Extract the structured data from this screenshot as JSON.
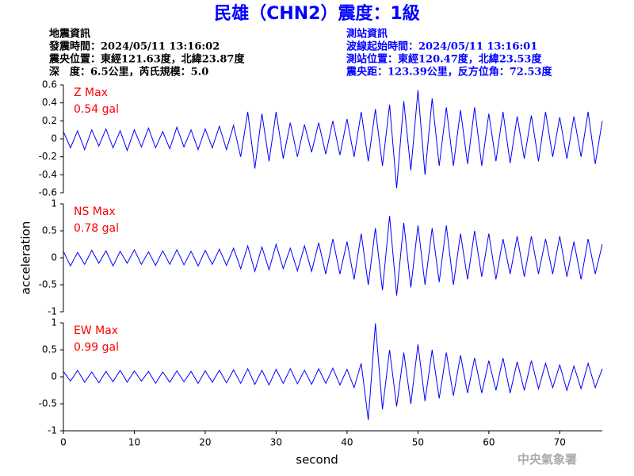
{
  "title": "民雄（CHN2）震度：1級",
  "header": {
    "left_lines": [
      "地震資訊",
      "發震時間：2024/05/11 13:16:02",
      "震央位置：東經121.63度，北緯23.87度",
      "深　度：6.5公里，芮氏規模：5.0"
    ],
    "right_lines": [
      "測站資訊",
      "波線起始時間：2024/05/11 13:16:01",
      "測站位置：東經120.47度，北緯23.53度",
      "震央距：123.39公里，反方位角：72.53度"
    ]
  },
  "watermark": "中央氣象署",
  "chart_data": [
    {
      "type": "line",
      "label": "Z Max",
      "max_label": "0.54 gal",
      "color": "#0000ff",
      "label_color": "#ff0000",
      "xlim": [
        0,
        76
      ],
      "ylim": [
        -0.6,
        0.6
      ],
      "yticks": [
        0.6,
        0.4,
        0.2,
        0,
        -0.2,
        -0.4,
        -0.6
      ],
      "x": [
        0,
        1,
        2,
        3,
        4,
        5,
        6,
        7,
        8,
        9,
        10,
        11,
        12,
        13,
        14,
        15,
        16,
        17,
        18,
        19,
        20,
        21,
        22,
        23,
        24,
        25,
        26,
        27,
        28,
        29,
        30,
        31,
        32,
        33,
        34,
        35,
        36,
        37,
        38,
        39,
        40,
        41,
        42,
        43,
        44,
        45,
        46,
        47,
        48,
        49,
        50,
        51,
        52,
        53,
        54,
        55,
        56,
        57,
        58,
        59,
        60,
        61,
        62,
        63,
        64,
        65,
        66,
        67,
        68,
        69,
        70,
        71,
        72,
        73,
        74,
        75,
        76
      ],
      "values": [
        0.08,
        -0.1,
        0.09,
        -0.12,
        0.1,
        -0.08,
        0.11,
        -0.1,
        0.09,
        -0.13,
        0.1,
        -0.09,
        0.12,
        -0.1,
        0.08,
        -0.11,
        0.13,
        -0.09,
        0.1,
        -0.12,
        0.11,
        -0.1,
        0.14,
        -0.12,
        0.15,
        -0.2,
        0.3,
        -0.33,
        0.28,
        -0.25,
        0.3,
        -0.22,
        0.18,
        -0.2,
        0.16,
        -0.15,
        0.18,
        -0.17,
        0.2,
        -0.18,
        0.22,
        -0.2,
        0.3,
        -0.25,
        0.33,
        -0.3,
        0.38,
        -0.55,
        0.42,
        -0.35,
        0.54,
        -0.4,
        0.45,
        -0.3,
        0.35,
        -0.3,
        0.32,
        -0.28,
        0.35,
        -0.3,
        0.28,
        -0.25,
        0.3,
        -0.27,
        0.25,
        -0.22,
        0.26,
        -0.25,
        0.3,
        -0.2,
        0.24,
        -0.22,
        0.25,
        -0.2,
        0.3,
        -0.28,
        0.2
      ]
    },
    {
      "type": "line",
      "label": "NS Max",
      "max_label": "0.78 gal",
      "color": "#0000ff",
      "label_color": "#ff0000",
      "ylabel": "acceleration",
      "xlim": [
        0,
        76
      ],
      "ylim": [
        -1,
        1
      ],
      "yticks": [
        1,
        0.5,
        0,
        -0.5,
        -1
      ],
      "x": [
        0,
        1,
        2,
        3,
        4,
        5,
        6,
        7,
        8,
        9,
        10,
        11,
        12,
        13,
        14,
        15,
        16,
        17,
        18,
        19,
        20,
        21,
        22,
        23,
        24,
        25,
        26,
        27,
        28,
        29,
        30,
        31,
        32,
        33,
        34,
        35,
        36,
        37,
        38,
        39,
        40,
        41,
        42,
        43,
        44,
        45,
        46,
        47,
        48,
        49,
        50,
        51,
        52,
        53,
        54,
        55,
        56,
        57,
        58,
        59,
        60,
        61,
        62,
        63,
        64,
        65,
        66,
        67,
        68,
        69,
        70,
        71,
        72,
        73,
        74,
        75,
        76
      ],
      "values": [
        0.12,
        -0.15,
        0.1,
        -0.12,
        0.14,
        -0.1,
        0.13,
        -0.15,
        0.12,
        -0.1,
        0.15,
        -0.12,
        0.11,
        -0.14,
        0.13,
        -0.12,
        0.15,
        -0.13,
        0.12,
        -0.15,
        0.14,
        -0.12,
        0.16,
        -0.14,
        0.18,
        -0.2,
        0.22,
        -0.25,
        0.2,
        -0.22,
        0.25,
        -0.2,
        0.18,
        -0.24,
        0.22,
        -0.25,
        0.28,
        -0.3,
        0.35,
        -0.3,
        0.3,
        -0.4,
        0.45,
        -0.5,
        0.55,
        -0.6,
        0.78,
        -0.7,
        0.65,
        -0.55,
        0.6,
        -0.5,
        0.55,
        -0.45,
        0.6,
        -0.5,
        0.45,
        -0.4,
        0.5,
        -0.35,
        0.45,
        -0.4,
        0.35,
        -0.3,
        0.4,
        -0.35,
        0.4,
        -0.3,
        0.35,
        -0.3,
        0.4,
        -0.35,
        0.3,
        -0.4,
        0.35,
        -0.3,
        0.25
      ]
    },
    {
      "type": "line",
      "label": "EW Max",
      "max_label": "0.99 gal",
      "color": "#0000ff",
      "label_color": "#ff0000",
      "xlabel": "second",
      "xlim": [
        0,
        76
      ],
      "ylim": [
        -1,
        1
      ],
      "yticks": [
        1,
        0.5,
        0,
        -0.5,
        -1
      ],
      "xticks": [
        0,
        10,
        20,
        30,
        40,
        50,
        60,
        70
      ],
      "x": [
        0,
        1,
        2,
        3,
        4,
        5,
        6,
        7,
        8,
        9,
        10,
        11,
        12,
        13,
        14,
        15,
        16,
        17,
        18,
        19,
        20,
        21,
        22,
        23,
        24,
        25,
        26,
        27,
        28,
        29,
        30,
        31,
        32,
        33,
        34,
        35,
        36,
        37,
        38,
        39,
        40,
        41,
        42,
        43,
        44,
        45,
        46,
        47,
        48,
        49,
        50,
        51,
        52,
        53,
        54,
        55,
        56,
        57,
        58,
        59,
        60,
        61,
        62,
        63,
        64,
        65,
        66,
        67,
        68,
        69,
        70,
        71,
        72,
        73,
        74,
        75,
        76
      ],
      "values": [
        0.1,
        -0.08,
        0.12,
        -0.1,
        0.09,
        -0.11,
        0.1,
        -0.09,
        0.12,
        -0.1,
        0.11,
        -0.08,
        0.1,
        -0.12,
        0.09,
        -0.1,
        0.11,
        -0.09,
        0.1,
        -0.12,
        0.11,
        -0.1,
        0.12,
        -0.11,
        0.13,
        -0.12,
        0.15,
        -0.14,
        0.12,
        -0.15,
        0.14,
        -0.12,
        0.15,
        -0.13,
        0.12,
        -0.14,
        0.15,
        -0.12,
        0.16,
        -0.15,
        0.14,
        -0.2,
        0.25,
        -0.8,
        0.99,
        -0.6,
        0.5,
        -0.55,
        0.45,
        -0.5,
        0.6,
        -0.45,
        0.5,
        -0.4,
        0.45,
        -0.35,
        0.4,
        -0.3,
        0.35,
        -0.3,
        0.3,
        -0.25,
        0.35,
        -0.3,
        0.28,
        -0.25,
        0.3,
        -0.22,
        0.25,
        -0.2,
        0.22,
        -0.25,
        0.2,
        -0.22,
        0.25,
        -0.2,
        0.15
      ]
    }
  ]
}
